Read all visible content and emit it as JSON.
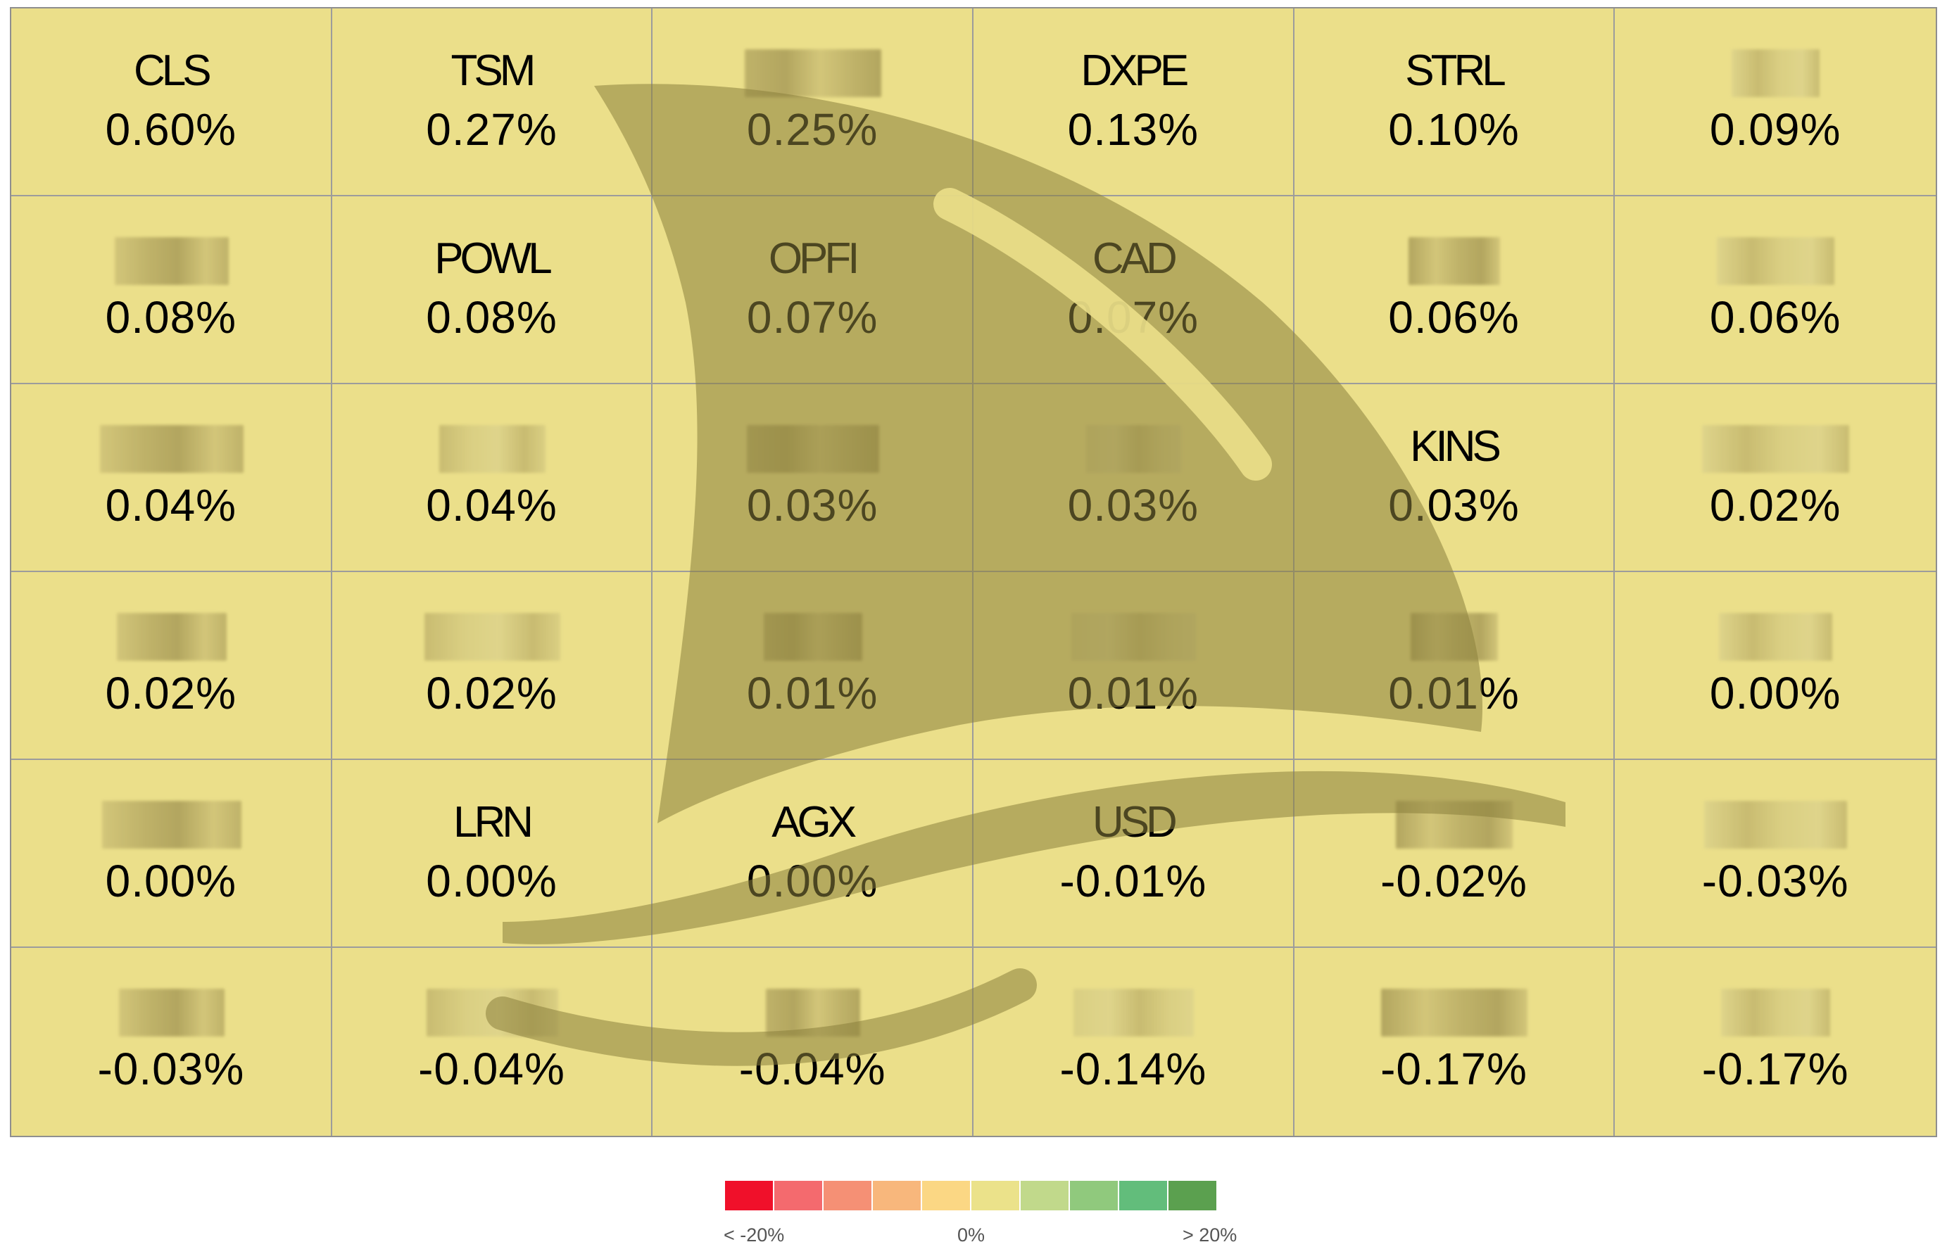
{
  "chart_data": {
    "type": "heatmap",
    "rows": 6,
    "cols": 6,
    "cells": [
      {
        "label": "CLS",
        "value": "0.60%",
        "blurred": false
      },
      {
        "label": "TSM",
        "value": "0.27%",
        "blurred": false
      },
      {
        "label": "",
        "value": "0.25%",
        "blurred": true
      },
      {
        "label": "DXPE",
        "value": "0.13%",
        "blurred": false
      },
      {
        "label": "STRL",
        "value": "0.10%",
        "blurred": false
      },
      {
        "label": "",
        "value": "0.09%",
        "blurred": true
      },
      {
        "label": "",
        "value": "0.08%",
        "blurred": true
      },
      {
        "label": "POWL",
        "value": "0.08%",
        "blurred": false
      },
      {
        "label": "OPFI",
        "value": "0.07%",
        "blurred": false
      },
      {
        "label": "CAD",
        "value": "0.07%",
        "blurred": false
      },
      {
        "label": "",
        "value": "0.06%",
        "blurred": true
      },
      {
        "label": "",
        "value": "0.06%",
        "blurred": true
      },
      {
        "label": "",
        "value": "0.04%",
        "blurred": true
      },
      {
        "label": "",
        "value": "0.04%",
        "blurred": true
      },
      {
        "label": "",
        "value": "0.03%",
        "blurred": true
      },
      {
        "label": "",
        "value": "0.03%",
        "blurred": true
      },
      {
        "label": "KINS",
        "value": "0.03%",
        "blurred": false
      },
      {
        "label": "",
        "value": "0.02%",
        "blurred": true
      },
      {
        "label": "",
        "value": "0.02%",
        "blurred": true
      },
      {
        "label": "",
        "value": "0.02%",
        "blurred": true
      },
      {
        "label": "",
        "value": "0.01%",
        "blurred": true
      },
      {
        "label": "",
        "value": "0.01%",
        "blurred": true
      },
      {
        "label": "",
        "value": "0.01%",
        "blurred": true
      },
      {
        "label": "",
        "value": "0.00%",
        "blurred": true
      },
      {
        "label": "",
        "value": "0.00%",
        "blurred": true
      },
      {
        "label": "LRN",
        "value": "0.00%",
        "blurred": false
      },
      {
        "label": "AGX",
        "value": "0.00%",
        "blurred": false
      },
      {
        "label": "USD",
        "value": "-0.01%",
        "blurred": false
      },
      {
        "label": "",
        "value": "-0.02%",
        "blurred": true
      },
      {
        "label": "",
        "value": "-0.03%",
        "blurred": true
      },
      {
        "label": "",
        "value": "-0.03%",
        "blurred": true
      },
      {
        "label": "",
        "value": "-0.04%",
        "blurred": true
      },
      {
        "label": "",
        "value": "-0.04%",
        "blurred": true
      },
      {
        "label": "",
        "value": "-0.14%",
        "blurred": true
      },
      {
        "label": "",
        "value": "-0.17%",
        "blurred": true
      },
      {
        "label": "",
        "value": "-0.17%",
        "blurred": true
      }
    ],
    "cell_color": "#ebdf8a",
    "legend": {
      "colors": [
        "#f0102a",
        "#f46a6e",
        "#f59075",
        "#f8b77c",
        "#fbd784",
        "#ebe28a",
        "#c1d98b",
        "#90c97d",
        "#62bd7b",
        "#5ba04f"
      ],
      "labels": {
        "low": "< -20%",
        "mid": "0%",
        "high": "> 20%"
      }
    }
  }
}
